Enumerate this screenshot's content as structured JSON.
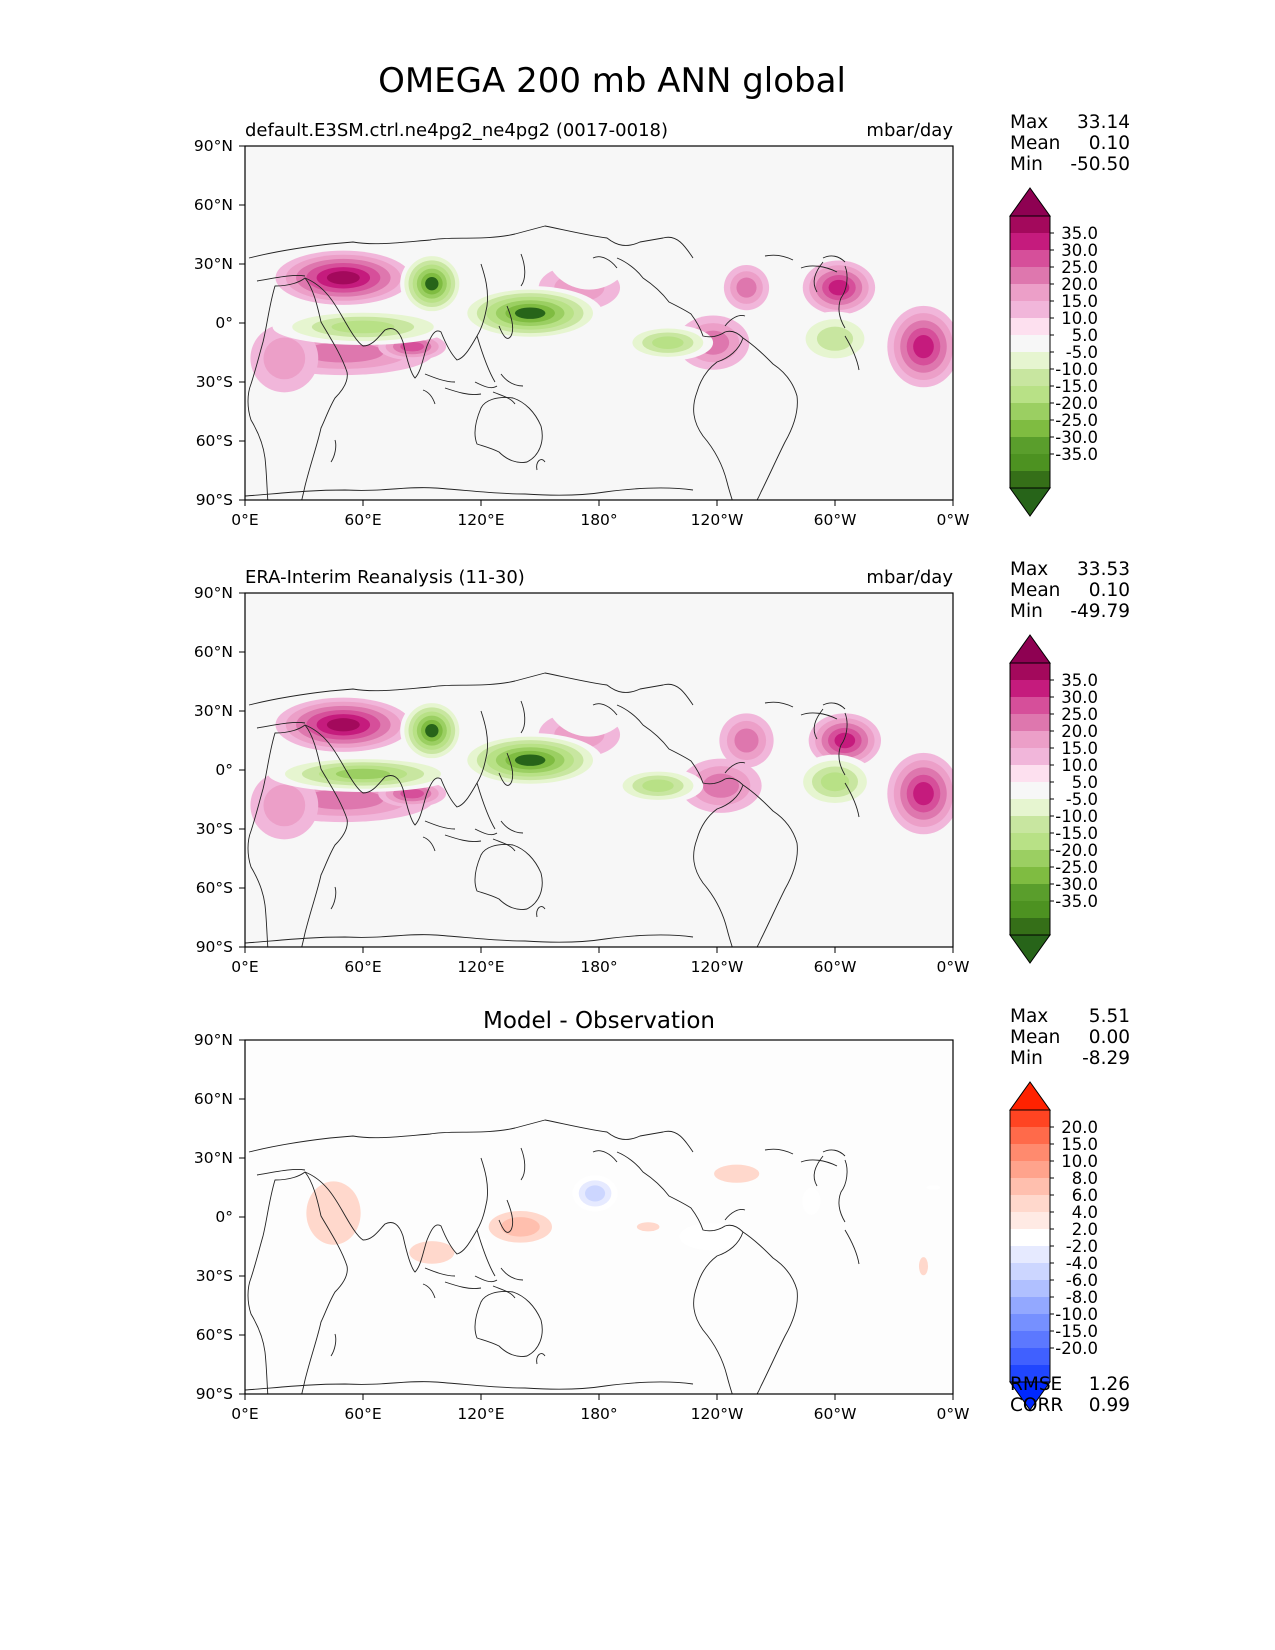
{
  "figure_title": "OMEGA 200 mb ANN global",
  "chart_data": [
    {
      "type": "contour-map",
      "panel": "model",
      "title_left": "default.E3SM.ctrl.ne4pg2_ne4pg2 (0017-0018)",
      "title_right": "mbar/day",
      "units": "mbar/day",
      "x_ticks": [
        "0°E",
        "60°E",
        "120°E",
        "180°",
        "120°W",
        "60°W",
        "0°W"
      ],
      "y_ticks": [
        "90°N",
        "60°N",
        "30°N",
        "0°",
        "30°S",
        "60°S",
        "90°S"
      ],
      "xlim": [
        0,
        360
      ],
      "ylim": [
        -90,
        90
      ],
      "stats": {
        "max_label": "Max",
        "max": "33.14",
        "mean_label": "Mean",
        "mean": "0.10",
        "min_label": "Min",
        "min": "-50.50"
      },
      "colorbar": {
        "levels": [
          "35.0",
          "30.0",
          "25.0",
          "20.0",
          "15.0",
          "10.0",
          "5.0",
          "-5.0",
          "-10.0",
          "-15.0",
          "-20.0",
          "-25.0",
          "-30.0",
          "-35.0"
        ],
        "colors": [
          "#8e0152",
          "#a3095c",
          "#c51b7d",
          "#d64f9a",
          "#de77ae",
          "#ec9fc8",
          "#f1b6da",
          "#fde0ef",
          "#f7f7f7",
          "#e6f5d0",
          "#c8e6a0",
          "#b8e186",
          "#9bcf62",
          "#7fbc41",
          "#5a9e2c",
          "#4d9221",
          "#356f18",
          "#276419"
        ],
        "extend": "both"
      },
      "features": [
        {
          "lon": 50,
          "lat": 23,
          "value": 30,
          "rx": 30,
          "ry": 12
        },
        {
          "lon": 170,
          "lat": 18,
          "value": 12,
          "rx": 18,
          "ry": 10
        },
        {
          "lon": 255,
          "lat": 18,
          "value": 15,
          "rx": 10,
          "ry": 10
        },
        {
          "lon": 238,
          "lat": -10,
          "value": 15,
          "rx": 16,
          "ry": 12
        },
        {
          "lon": 302,
          "lat": 18,
          "value": 25,
          "rx": 16,
          "ry": 12
        },
        {
          "lon": 345,
          "lat": -12,
          "value": 25,
          "rx": 16,
          "ry": 18
        },
        {
          "lon": 50,
          "lat": -15,
          "value": 15,
          "rx": 40,
          "ry": 10
        },
        {
          "lon": 85,
          "lat": -12,
          "value": 22,
          "rx": 15,
          "ry": 6
        },
        {
          "lon": 20,
          "lat": -18,
          "value": 12,
          "rx": 15,
          "ry": 15
        },
        {
          "lon": 95,
          "lat": 20,
          "value": -40,
          "rx": 14,
          "ry": 14
        },
        {
          "lon": 145,
          "lat": 5,
          "value": -38,
          "rx": 32,
          "ry": 12
        },
        {
          "lon": 60,
          "lat": -2,
          "value": -20,
          "rx": 40,
          "ry": 8
        },
        {
          "lon": 215,
          "lat": -10,
          "value": -20,
          "rx": 20,
          "ry": 8
        },
        {
          "lon": 300,
          "lat": -8,
          "value": -18,
          "rx": 18,
          "ry": 12
        },
        {
          "lon": 175,
          "lat": 40,
          "value": -8,
          "rx": 20,
          "ry": 20
        },
        {
          "lon": 130,
          "lat": -55,
          "value": -8,
          "rx": 25,
          "ry": 6
        }
      ]
    },
    {
      "type": "contour-map",
      "panel": "observation",
      "title_left": "ERA-Interim Reanalysis (11-30)",
      "title_right": "mbar/day",
      "units": "mbar/day",
      "x_ticks": [
        "0°E",
        "60°E",
        "120°E",
        "180°",
        "120°W",
        "60°W",
        "0°W"
      ],
      "y_ticks": [
        "90°N",
        "60°N",
        "30°N",
        "0°",
        "30°S",
        "60°S",
        "90°S"
      ],
      "xlim": [
        0,
        360
      ],
      "ylim": [
        -90,
        90
      ],
      "stats": {
        "max_label": "Max",
        "max": "33.53",
        "mean_label": "Mean",
        "mean": "0.10",
        "min_label": "Min",
        "min": "-49.79"
      },
      "colorbar": {
        "levels": [
          "35.0",
          "30.0",
          "25.0",
          "20.0",
          "15.0",
          "10.0",
          "5.0",
          "-5.0",
          "-10.0",
          "-15.0",
          "-20.0",
          "-25.0",
          "-30.0",
          "-35.0"
        ],
        "colors": [
          "#8e0152",
          "#a3095c",
          "#c51b7d",
          "#d64f9a",
          "#de77ae",
          "#ec9fc8",
          "#f1b6da",
          "#fde0ef",
          "#f7f7f7",
          "#e6f5d0",
          "#c8e6a0",
          "#b8e186",
          "#9bcf62",
          "#7fbc41",
          "#5a9e2c",
          "#4d9221",
          "#356f18",
          "#276419"
        ],
        "extend": "both"
      },
      "features": [
        {
          "lon": 50,
          "lat": 23,
          "value": 30,
          "rx": 30,
          "ry": 12
        },
        {
          "lon": 170,
          "lat": 18,
          "value": 12,
          "rx": 18,
          "ry": 10
        },
        {
          "lon": 255,
          "lat": 15,
          "value": 15,
          "rx": 12,
          "ry": 12
        },
        {
          "lon": 242,
          "lat": -8,
          "value": 15,
          "rx": 18,
          "ry": 12
        },
        {
          "lon": 305,
          "lat": 15,
          "value": 25,
          "rx": 16,
          "ry": 12
        },
        {
          "lon": 345,
          "lat": -12,
          "value": 25,
          "rx": 16,
          "ry": 18
        },
        {
          "lon": 50,
          "lat": -15,
          "value": 15,
          "rx": 40,
          "ry": 10
        },
        {
          "lon": 85,
          "lat": -12,
          "value": 20,
          "rx": 15,
          "ry": 6
        },
        {
          "lon": 20,
          "lat": -18,
          "value": 12,
          "rx": 15,
          "ry": 15
        },
        {
          "lon": 95,
          "lat": 20,
          "value": -40,
          "rx": 14,
          "ry": 14
        },
        {
          "lon": 145,
          "lat": 5,
          "value": -38,
          "rx": 32,
          "ry": 12
        },
        {
          "lon": 60,
          "lat": -2,
          "value": -28,
          "rx": 42,
          "ry": 8
        },
        {
          "lon": 210,
          "lat": -8,
          "value": -22,
          "rx": 20,
          "ry": 8
        },
        {
          "lon": 300,
          "lat": -6,
          "value": -22,
          "rx": 18,
          "ry": 12
        },
        {
          "lon": 175,
          "lat": 40,
          "value": -8,
          "rx": 20,
          "ry": 20
        },
        {
          "lon": 130,
          "lat": -55,
          "value": -8,
          "rx": 25,
          "ry": 6
        }
      ]
    },
    {
      "type": "contour-map",
      "panel": "difference",
      "title_center": "Model - Observation",
      "x_ticks": [
        "0°E",
        "60°E",
        "120°E",
        "180°",
        "120°W",
        "60°W",
        "0°W"
      ],
      "y_ticks": [
        "90°N",
        "60°N",
        "30°N",
        "0°",
        "30°S",
        "60°S",
        "90°S"
      ],
      "xlim": [
        0,
        360
      ],
      "ylim": [
        -90,
        90
      ],
      "stats": {
        "max_label": "Max",
        "max": "5.51",
        "mean_label": "Mean",
        "mean": "0.00",
        "min_label": "Min",
        "min": "-8.29"
      },
      "metrics": {
        "rmse_label": "RMSE",
        "rmse": "1.26",
        "corr_label": "CORR",
        "corr": "0.99"
      },
      "colorbar": {
        "levels": [
          "20.0",
          "15.0",
          "10.0",
          "8.0",
          "6.0",
          "4.0",
          "2.0",
          "-2.0",
          "-4.0",
          "-6.0",
          "-8.0",
          "-10.0",
          "-15.0",
          "-20.0"
        ],
        "colors": [
          "#ff2200",
          "#ff4422",
          "#ff6a4a",
          "#ff8a6e",
          "#ffa38c",
          "#ffbfae",
          "#ffd8cc",
          "#ffeae4",
          "#ffffff",
          "#e6eaff",
          "#ccd6ff",
          "#b0c0ff",
          "#93a8ff",
          "#7690ff",
          "#5c78ff",
          "#4060ff",
          "#2046ff",
          "#0028ff"
        ],
        "extend": "both"
      },
      "features": [
        {
          "lon": 178,
          "lat": 12,
          "value": -7,
          "rx": 10,
          "ry": 8
        },
        {
          "lon": 237,
          "lat": -10,
          "value": -3,
          "rx": 14,
          "ry": 6
        },
        {
          "lon": 288,
          "lat": 8,
          "value": -3,
          "rx": 4,
          "ry": 6
        },
        {
          "lon": 120,
          "lat": -14,
          "value": -3,
          "rx": 3,
          "ry": 3
        },
        {
          "lon": 140,
          "lat": -5,
          "value": 4,
          "rx": 14,
          "ry": 7
        },
        {
          "lon": 45,
          "lat": 2,
          "value": 3,
          "rx": 12,
          "ry": 14
        },
        {
          "lon": 95,
          "lat": -18,
          "value": 3,
          "rx": 10,
          "ry": 5
        },
        {
          "lon": 250,
          "lat": 22,
          "value": 3,
          "rx": 10,
          "ry": 4
        },
        {
          "lon": 205,
          "lat": -5,
          "value": 3,
          "rx": 5,
          "ry": 2
        },
        {
          "lon": 345,
          "lat": -25,
          "value": 3,
          "rx": 2,
          "ry": 4
        },
        {
          "lon": 350,
          "lat": 15,
          "value": -2.5,
          "rx": 3,
          "ry": 1
        }
      ]
    }
  ]
}
